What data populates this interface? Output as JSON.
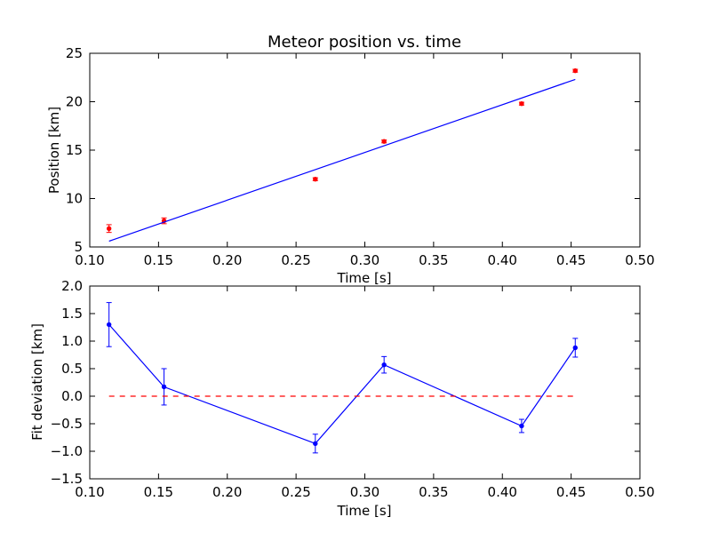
{
  "chart_data": [
    {
      "type": "scatter",
      "title": "Meteor position vs. time",
      "xlabel": "Time [s]",
      "ylabel": "Position [km]",
      "xlim": [
        0.1,
        0.5
      ],
      "ylim": [
        5,
        25
      ],
      "xticks": [
        "0.10",
        "0.15",
        "0.20",
        "0.25",
        "0.30",
        "0.35",
        "0.40",
        "0.45",
        "0.50"
      ],
      "xtick_values": [
        0.1,
        0.15,
        0.2,
        0.25,
        0.3,
        0.35,
        0.4,
        0.45,
        0.5
      ],
      "yticks": [
        "5",
        "10",
        "15",
        "20",
        "25"
      ],
      "ytick_values": [
        5,
        10,
        15,
        20,
        25
      ],
      "grid": false,
      "series": [
        {
          "style": "errorbar-points",
          "color": "#ff0000",
          "x": [
            0.114,
            0.154,
            0.264,
            0.314,
            0.414,
            0.453
          ],
          "y": [
            6.9,
            7.7,
            12.0,
            15.9,
            19.8,
            23.2
          ],
          "yerr": [
            0.4,
            0.3,
            0.15,
            0.15,
            0.15,
            0.15
          ]
        },
        {
          "style": "line",
          "color": "#0000ff",
          "x": [
            0.114,
            0.453
          ],
          "y": [
            5.6,
            22.3
          ]
        }
      ]
    },
    {
      "type": "line",
      "title": "",
      "xlabel": "Time [s]",
      "ylabel": "Fit deviation [km]",
      "xlim": [
        0.1,
        0.5
      ],
      "ylim": [
        -1.5,
        2.0
      ],
      "xticks": [
        "0.10",
        "0.15",
        "0.20",
        "0.25",
        "0.30",
        "0.35",
        "0.40",
        "0.45",
        "0.50"
      ],
      "xtick_values": [
        0.1,
        0.15,
        0.2,
        0.25,
        0.3,
        0.35,
        0.4,
        0.45,
        0.5
      ],
      "yticks": [
        "−1.5",
        "−1.0",
        "−0.5",
        "0.0",
        "0.5",
        "1.0",
        "1.5",
        "2.0"
      ],
      "ytick_values": [
        -1.5,
        -1.0,
        -0.5,
        0.0,
        0.5,
        1.0,
        1.5,
        2.0
      ],
      "grid": false,
      "series": [
        {
          "style": "line-errorbar",
          "color": "#0000ff",
          "x": [
            0.114,
            0.154,
            0.264,
            0.314,
            0.414,
            0.453
          ],
          "y": [
            1.3,
            0.17,
            -0.86,
            0.57,
            -0.54,
            0.88
          ],
          "yerr": [
            0.4,
            0.33,
            0.17,
            0.15,
            0.12,
            0.17
          ]
        },
        {
          "style": "dashed-line",
          "color": "#ff0000",
          "x": [
            0.114,
            0.453
          ],
          "y": [
            0.0,
            0.0
          ]
        }
      ]
    }
  ]
}
